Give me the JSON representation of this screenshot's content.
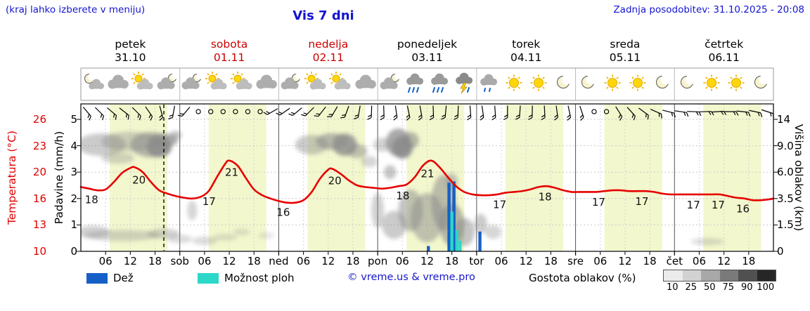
{
  "header": {
    "hint": "(kraj lahko izberete v meniju)",
    "title": "Vis 7 dni",
    "updated": "Zadnja posodobitev: 31.10.2025 - 20:08"
  },
  "axes": {
    "temp_label": "Temperatura (°C)",
    "precip_label": "Padavine (mm/h)",
    "cloud_label": "Višina oblakov (km)",
    "temp_ticks": [
      "26",
      "23",
      "20",
      "16",
      "13",
      "10"
    ],
    "precip_ticks": [
      "5",
      "4",
      "3",
      "2",
      "1",
      "0"
    ],
    "cloud_ticks": [
      "14",
      "9.0",
      "6.0",
      "3.5",
      "1.5",
      "0"
    ]
  },
  "days": [
    {
      "name": "petek",
      "date": "31.10",
      "color": "#000000",
      "icons": [
        "moon-cloud",
        "cloud",
        "sun-cloud",
        "cloud-moon"
      ]
    },
    {
      "name": "sobota",
      "date": "01.11",
      "color": "#cc0000",
      "icons": [
        "cloud-moon",
        "sun-cloud",
        "sun-cloud",
        "cloud"
      ]
    },
    {
      "name": "nedelja",
      "date": "02.11",
      "color": "#cc0000",
      "icons": [
        "cloud-moon",
        "sun-cloud",
        "sun-cloud",
        "cloud"
      ]
    },
    {
      "name": "ponedeljek",
      "date": "03.11",
      "color": "#000000",
      "icons": [
        "cloud-moon",
        "rain",
        "rain",
        "storm"
      ]
    },
    {
      "name": "torek",
      "date": "04.11",
      "color": "#000000",
      "icons": [
        "drizzle",
        "sun",
        "sun",
        "moon"
      ]
    },
    {
      "name": "sreda",
      "date": "05.11",
      "color": "#000000",
      "icons": [
        "moon",
        "sun",
        "sun",
        "moon"
      ]
    },
    {
      "name": "četrtek",
      "date": "06.11",
      "color": "#000000",
      "icons": [
        "moon",
        "sun",
        "sun",
        "moon"
      ]
    }
  ],
  "xaxis": {
    "hour_labels": [
      "06",
      "12",
      "18"
    ],
    "day_abbrs": [
      "sob",
      "ned",
      "pon",
      "tor",
      "sre",
      "čet"
    ]
  },
  "legend": {
    "rain_label": "Dež",
    "rain_color": "#1560c8",
    "showers_label": "Možnost ploh",
    "showers_color": "#2bd8c8",
    "copyright": "© vreme.us & vreme.pro",
    "cloud_density_label": "Gostota oblakov (%)",
    "density_ticks": [
      "10",
      "25",
      "50",
      "75",
      "90",
      "100"
    ],
    "density_colors": [
      "#ebebeb",
      "#d2d2d2",
      "#a8a8a8",
      "#7a7a7a",
      "#505050",
      "#262626"
    ]
  },
  "chart_data": {
    "type": "line",
    "title": "Vis 7 dni",
    "x_axis": "hours from Fri 31.10 00:00, 7 days (0-168 h)",
    "temp_unit": "°C",
    "precip_unit": "mm/h",
    "cloud_height_unit": "km",
    "temp_axis_ticks": [
      10,
      13,
      16,
      20,
      23,
      26
    ],
    "precip_axis_ticks": [
      0,
      1,
      2,
      3,
      4,
      5
    ],
    "cloud_height_axis_ticks_km": [
      0,
      1.5,
      3.5,
      6.0,
      9.0,
      14
    ],
    "grid": true,
    "day_band_hours": [
      7,
      21
    ],
    "now_hour": 20.13,
    "temperature_series": [
      [
        0,
        17.8
      ],
      [
        2,
        17.6
      ],
      [
        4,
        17.4
      ],
      [
        6,
        17.5
      ],
      [
        8,
        18.4
      ],
      [
        10,
        19.5
      ],
      [
        12,
        20.1
      ],
      [
        13,
        20.2
      ],
      [
        15,
        19.6
      ],
      [
        17,
        18.4
      ],
      [
        19,
        17.4
      ],
      [
        21,
        17
      ],
      [
        23,
        16.7
      ],
      [
        25,
        16.5
      ],
      [
        27,
        16.4
      ],
      [
        29,
        16.6
      ],
      [
        31,
        17.3
      ],
      [
        33,
        19
      ],
      [
        35,
        20.6
      ],
      [
        36,
        21
      ],
      [
        38,
        20.4
      ],
      [
        40,
        18.9
      ],
      [
        42,
        17.5
      ],
      [
        44,
        16.8
      ],
      [
        46,
        16.4
      ],
      [
        48,
        16.1
      ],
      [
        50,
        15.9
      ],
      [
        52,
        15.9
      ],
      [
        54,
        16.2
      ],
      [
        56,
        17.2
      ],
      [
        58,
        18.8
      ],
      [
        60,
        19.9
      ],
      [
        61,
        20
      ],
      [
        63,
        19.4
      ],
      [
        65,
        18.6
      ],
      [
        67,
        18
      ],
      [
        69,
        17.8
      ],
      [
        71,
        17.7
      ],
      [
        73,
        17.6
      ],
      [
        75,
        17.7
      ],
      [
        77,
        17.9
      ],
      [
        79,
        18.1
      ],
      [
        81,
        19
      ],
      [
        83,
        20.4
      ],
      [
        85,
        21
      ],
      [
        87,
        20.2
      ],
      [
        89,
        19
      ],
      [
        91,
        17.9
      ],
      [
        93,
        17.2
      ],
      [
        95,
        16.9
      ],
      [
        97,
        16.8
      ],
      [
        99,
        16.8
      ],
      [
        101,
        16.9
      ],
      [
        103,
        17.1
      ],
      [
        105,
        17.2
      ],
      [
        107,
        17.3
      ],
      [
        109,
        17.5
      ],
      [
        111,
        17.8
      ],
      [
        113,
        17.9
      ],
      [
        115,
        17.7
      ],
      [
        117,
        17.4
      ],
      [
        119,
        17.2
      ],
      [
        121,
        17.2
      ],
      [
        123,
        17.2
      ],
      [
        125,
        17.2
      ],
      [
        127,
        17.3
      ],
      [
        129,
        17.4
      ],
      [
        131,
        17.4
      ],
      [
        133,
        17.3
      ],
      [
        135,
        17.3
      ],
      [
        137,
        17.3
      ],
      [
        139,
        17.2
      ],
      [
        141,
        17
      ],
      [
        143,
        16.9
      ],
      [
        145,
        16.9
      ],
      [
        147,
        16.9
      ],
      [
        149,
        16.9
      ],
      [
        151,
        16.9
      ],
      [
        153,
        16.9
      ],
      [
        155,
        16.9
      ],
      [
        157,
        16.7
      ],
      [
        159,
        16.5
      ],
      [
        161,
        16.4
      ],
      [
        163,
        16.2
      ],
      [
        165,
        16.2
      ],
      [
        167,
        16.3
      ],
      [
        168,
        16.4
      ]
    ],
    "temp_point_labels": [
      {
        "h": 2.5,
        "label": "18"
      },
      {
        "h": 14,
        "label": "20"
      },
      {
        "h": 31,
        "label": "17"
      },
      {
        "h": 36.5,
        "label": "21"
      },
      {
        "h": 49,
        "label": "16"
      },
      {
        "h": 61.5,
        "label": "20"
      },
      {
        "h": 78,
        "label": "18"
      },
      {
        "h": 84,
        "label": "21"
      },
      {
        "h": 101.5,
        "label": "17"
      },
      {
        "h": 112.5,
        "label": "18"
      },
      {
        "h": 125.5,
        "label": "17"
      },
      {
        "h": 136,
        "label": "17"
      },
      {
        "h": 148.5,
        "label": "17"
      },
      {
        "h": 154.5,
        "label": "17"
      },
      {
        "h": 160.5,
        "label": "16"
      }
    ],
    "rain_bars_mm": [
      [
        84.3,
        0.2
      ],
      [
        89.3,
        2.6
      ],
      [
        90.5,
        2.65
      ],
      [
        96.8,
        0.75
      ]
    ],
    "shower_bars_mm": [
      [
        90,
        1.5
      ],
      [
        91.2,
        0.8
      ],
      [
        92,
        0.4
      ]
    ],
    "clouds": [
      {
        "h": 5,
        "km": 9.2,
        "rh": 6,
        "ry": 16,
        "o": 0.45
      },
      {
        "h": 12,
        "km": 9.8,
        "rh": 7,
        "ry": 14,
        "o": 0.4
      },
      {
        "h": 17,
        "km": 9.2,
        "rh": 5,
        "ry": 18,
        "o": 0.6
      },
      {
        "h": 19,
        "km": 8.8,
        "rh": 3,
        "ry": 14,
        "o": 0.85
      },
      {
        "h": 20,
        "km": 10,
        "rh": 3.5,
        "ry": 10,
        "o": 0.7
      },
      {
        "h": 9,
        "km": 7.6,
        "rh": 4,
        "ry": 8,
        "o": 0.35
      },
      {
        "h": 23,
        "km": 11,
        "rh": 1.5,
        "ry": 6,
        "o": 0.5
      },
      {
        "h": 3,
        "km": 1.1,
        "rh": 4,
        "ry": 9,
        "o": 0.4
      },
      {
        "h": 10,
        "km": 0.9,
        "rh": 9,
        "ry": 8,
        "o": 0.35
      },
      {
        "h": 20,
        "km": 1,
        "rh": 4,
        "ry": 7,
        "o": 0.4
      },
      {
        "h": 24,
        "km": 0.7,
        "rh": 3,
        "ry": 6,
        "o": 0.3
      },
      {
        "h": 27,
        "km": 2.6,
        "rh": 1.2,
        "ry": 14,
        "o": 0.35
      },
      {
        "h": 30,
        "km": 0.6,
        "rh": 3,
        "ry": 6,
        "o": 0.3
      },
      {
        "h": 35,
        "km": 0.8,
        "rh": 3,
        "ry": 5,
        "o": 0.25
      },
      {
        "h": 39,
        "km": 1.1,
        "rh": 2,
        "ry": 5,
        "o": 0.25
      },
      {
        "h": 45,
        "km": 0.9,
        "rh": 2,
        "ry": 5,
        "o": 0.2
      },
      {
        "h": 56,
        "km": 9.2,
        "rh": 4,
        "ry": 14,
        "o": 0.45
      },
      {
        "h": 61,
        "km": 9.8,
        "rh": 4,
        "ry": 12,
        "o": 0.6
      },
      {
        "h": 64,
        "km": 9.2,
        "rh": 3,
        "ry": 16,
        "o": 0.8
      },
      {
        "h": 67,
        "km": 8.4,
        "rh": 2.5,
        "ry": 10,
        "o": 0.5
      },
      {
        "h": 70,
        "km": 7.2,
        "rh": 2,
        "ry": 8,
        "o": 0.35
      },
      {
        "h": 73,
        "km": 9.2,
        "rh": 2,
        "ry": 10,
        "o": 0.4
      },
      {
        "h": 77,
        "km": 9.6,
        "rh": 3,
        "ry": 20,
        "o": 0.75
      },
      {
        "h": 78,
        "km": 8.8,
        "rh": 2.5,
        "ry": 16,
        "o": 0.9
      },
      {
        "h": 80,
        "km": 10,
        "rh": 2,
        "ry": 12,
        "o": 0.6
      },
      {
        "h": 75,
        "km": 6,
        "rh": 1.5,
        "ry": 10,
        "o": 0.5
      },
      {
        "h": 72,
        "km": 2.6,
        "rh": 1.5,
        "ry": 25,
        "o": 0.4
      },
      {
        "h": 76,
        "km": 1.5,
        "rh": 3,
        "ry": 20,
        "o": 0.45
      },
      {
        "h": 80,
        "km": 2.6,
        "rh": 3,
        "ry": 30,
        "o": 0.5
      },
      {
        "h": 84,
        "km": 2.05,
        "rh": 4,
        "ry": 35,
        "o": 0.5
      },
      {
        "h": 88,
        "km": 3.2,
        "rh": 3,
        "ry": 40,
        "o": 0.55
      },
      {
        "h": 90,
        "km": 1.5,
        "rh": 3,
        "ry": 30,
        "o": 0.6
      },
      {
        "h": 93,
        "km": 1.1,
        "rh": 2.5,
        "ry": 20,
        "o": 0.5
      },
      {
        "h": 90,
        "km": 5.1,
        "rh": 1.5,
        "ry": 12,
        "o": 0.45
      },
      {
        "h": 97,
        "km": 1.6,
        "rh": 1.5,
        "ry": 14,
        "o": 0.45
      },
      {
        "h": 100,
        "km": 1.1,
        "rh": 2,
        "ry": 10,
        "o": 0.35
      },
      {
        "h": 152,
        "km": 0.55,
        "rh": 4,
        "ry": 5,
        "o": 0.3
      }
    ],
    "wind": [
      [
        1.5,
        140
      ],
      [
        4.5,
        135
      ],
      [
        7.5,
        130
      ],
      [
        10.5,
        128
      ],
      [
        13.5,
        135
      ],
      [
        16.5,
        145
      ],
      [
        19.5,
        165
      ],
      [
        22.5,
        190
      ],
      [
        25.5,
        220
      ],
      [
        28.5,
        null
      ],
      [
        31.5,
        null
      ],
      [
        34.5,
        null
      ],
      [
        37.5,
        null
      ],
      [
        40.5,
        null
      ],
      [
        43.5,
        null
      ],
      [
        46.5,
        240
      ],
      [
        49.5,
        235
      ],
      [
        52.5,
        230
      ],
      [
        55.5,
        225
      ],
      [
        58.5,
        218
      ],
      [
        61.5,
        210
      ],
      [
        64.5,
        200
      ],
      [
        67.5,
        190
      ],
      [
        70.5,
        182
      ],
      [
        73.5,
        178
      ],
      [
        76.5,
        172
      ],
      [
        79.5,
        168
      ],
      [
        82.5,
        170
      ],
      [
        85.5,
        178
      ],
      [
        88.5,
        185
      ],
      [
        91.5,
        182
      ],
      [
        94.5,
        176
      ],
      [
        97.5,
        172
      ],
      [
        100.5,
        176
      ],
      [
        103.5,
        180
      ],
      [
        106.5,
        184
      ],
      [
        109.5,
        181
      ],
      [
        112.5,
        177
      ],
      [
        115.5,
        172
      ],
      [
        118.5,
        168
      ],
      [
        121.5,
        162
      ],
      [
        124.5,
        null
      ],
      [
        127.5,
        null
      ],
      [
        130.5,
        148
      ],
      [
        133.5,
        138
      ],
      [
        136.5,
        126
      ],
      [
        139.5,
        114
      ],
      [
        142.5,
        104
      ],
      [
        145.5,
        98
      ],
      [
        148.5,
        92
      ],
      [
        151.5,
        88
      ],
      [
        154.5,
        86
      ],
      [
        157.5,
        90
      ],
      [
        160.5,
        96
      ],
      [
        163.5,
        102
      ],
      [
        166.5,
        108
      ]
    ]
  }
}
